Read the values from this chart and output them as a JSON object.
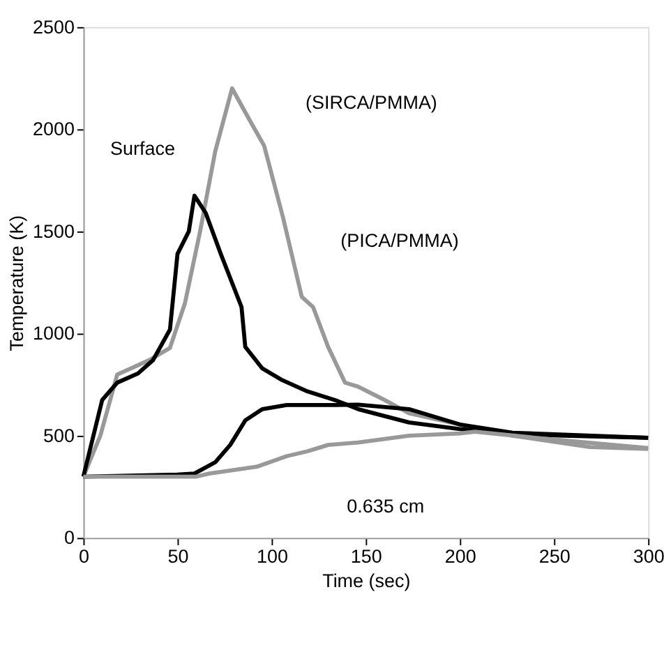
{
  "chart_data": {
    "type": "line",
    "xlabel": "Time (sec)",
    "ylabel": "Temperature (K)",
    "xlim": [
      0,
      300
    ],
    "xticks": [
      0,
      50,
      100,
      150,
      200,
      250,
      300
    ],
    "ylim": [
      0,
      2500
    ],
    "yticks": [
      0,
      500,
      1000,
      1500,
      2000,
      2500
    ],
    "grid": false,
    "legend": false,
    "marker": "none",
    "line_style": "solid",
    "series": [
      {
        "color": "#999999",
        "x": [
          0,
          9,
          18,
          35,
          46,
          54,
          62,
          70,
          79,
          88,
          96,
          106,
          116,
          122,
          130,
          139,
          146,
          160,
          173,
          200,
          228,
          269,
          300
        ],
        "values": [
          300,
          500,
          800,
          870,
          930,
          1150,
          1500,
          1890,
          2200,
          2050,
          1920,
          1570,
          1180,
          1130,
          935,
          760,
          740,
          675,
          610,
          555,
          500,
          445,
          435
        ]
      },
      {
        "color": "#000000",
        "x": [
          0,
          10,
          18,
          29,
          37,
          46,
          50,
          56,
          59,
          65,
          73,
          84,
          86,
          95,
          105,
          119,
          135,
          146,
          173,
          200,
          228,
          255,
          300
        ],
        "values": [
          300,
          675,
          760,
          805,
          870,
          1020,
          1390,
          1500,
          1675,
          1590,
          1390,
          1130,
          935,
          830,
          775,
          717,
          670,
          630,
          565,
          533,
          510,
          500,
          490
        ]
      },
      {
        "color": "#000000",
        "x": [
          0,
          50,
          59,
          70,
          78,
          86,
          95,
          108,
          135,
          146,
          173,
          200,
          228,
          300
        ],
        "values": [
          300,
          310,
          315,
          370,
          455,
          575,
          630,
          650,
          650,
          652,
          630,
          555,
          515,
          490
        ]
      },
      {
        "color": "#999999",
        "x": [
          0,
          60,
          67,
          92,
          108,
          119,
          130,
          146,
          173,
          200,
          208,
          240,
          300
        ],
        "values": [
          300,
          300,
          315,
          348,
          400,
          424,
          455,
          467,
          500,
          511,
          520,
          490,
          440
        ]
      }
    ],
    "annotations": [
      "(SIRCA/PMMA)",
      "Surface",
      "(PICA/PMMA)",
      "0.635 cm"
    ]
  }
}
